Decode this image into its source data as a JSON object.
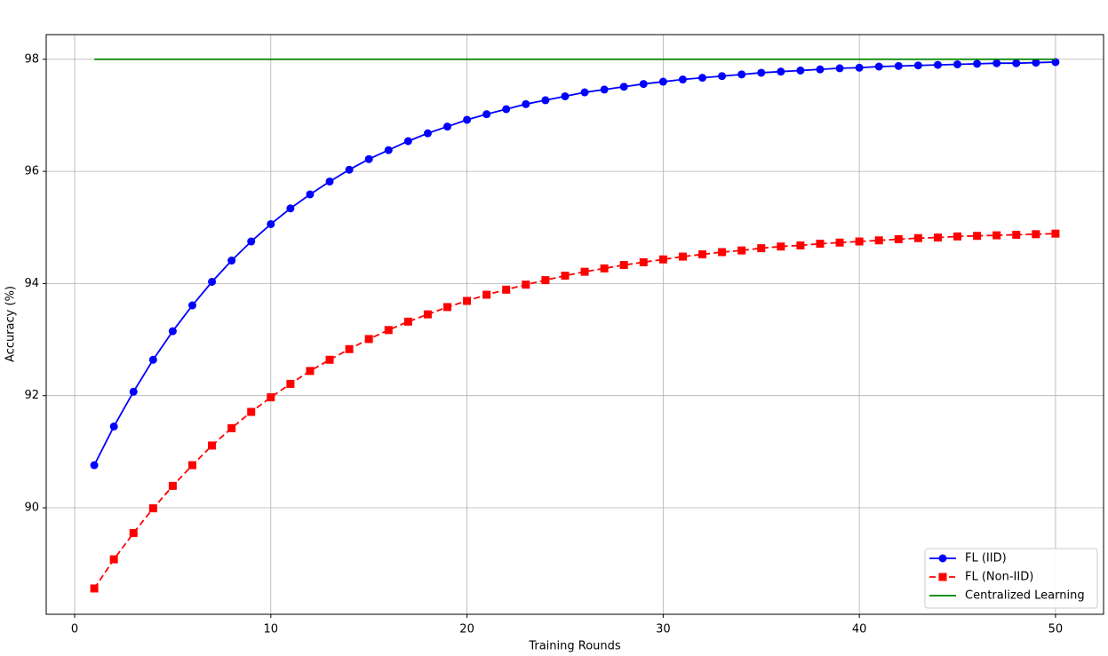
{
  "chart_data": {
    "type": "line",
    "xlabel": "Training Rounds",
    "ylabel": "Accuracy (%)",
    "x": [
      1,
      2,
      3,
      4,
      5,
      6,
      7,
      8,
      9,
      10,
      11,
      12,
      13,
      14,
      15,
      16,
      17,
      18,
      19,
      20,
      21,
      22,
      23,
      24,
      25,
      26,
      27,
      28,
      29,
      30,
      31,
      32,
      33,
      34,
      35,
      36,
      37,
      38,
      39,
      40,
      41,
      42,
      43,
      44,
      45,
      46,
      47,
      48,
      49,
      50
    ],
    "series": [
      {
        "name": "FL (IID)",
        "color": "#0000ff",
        "marker": "circle",
        "linestyle": "solid",
        "values": [
          90.76,
          91.45,
          92.07,
          92.64,
          93.15,
          93.61,
          94.03,
          94.41,
          94.75,
          95.06,
          95.34,
          95.59,
          95.82,
          96.03,
          96.22,
          96.38,
          96.54,
          96.68,
          96.8,
          96.92,
          97.02,
          97.11,
          97.2,
          97.27,
          97.34,
          97.41,
          97.46,
          97.51,
          97.56,
          97.6,
          97.64,
          97.67,
          97.7,
          97.73,
          97.76,
          97.78,
          97.8,
          97.82,
          97.84,
          97.85,
          97.87,
          97.88,
          97.89,
          97.9,
          97.91,
          97.92,
          97.93,
          97.93,
          97.94,
          97.95
        ]
      },
      {
        "name": "FL (Non-IID)",
        "color": "#ff0000",
        "marker": "square",
        "linestyle": "dashed",
        "values": [
          88.56,
          89.08,
          89.55,
          89.99,
          90.39,
          90.76,
          91.11,
          91.42,
          91.71,
          91.97,
          92.21,
          92.44,
          92.64,
          92.83,
          93.01,
          93.17,
          93.32,
          93.45,
          93.58,
          93.69,
          93.8,
          93.89,
          93.98,
          94.06,
          94.14,
          94.21,
          94.27,
          94.33,
          94.38,
          94.43,
          94.48,
          94.52,
          94.56,
          94.59,
          94.63,
          94.66,
          94.68,
          94.71,
          94.73,
          94.75,
          94.77,
          94.79,
          94.81,
          94.82,
          94.84,
          94.85,
          94.86,
          94.87,
          94.88,
          94.89
        ]
      },
      {
        "name": "Centralized Learning",
        "color": "#008000",
        "marker": "none",
        "linestyle": "solid",
        "values": [
          98,
          98,
          98,
          98,
          98,
          98,
          98,
          98,
          98,
          98,
          98,
          98,
          98,
          98,
          98,
          98,
          98,
          98,
          98,
          98,
          98,
          98,
          98,
          98,
          98,
          98,
          98,
          98,
          98,
          98,
          98,
          98,
          98,
          98,
          98,
          98,
          98,
          98,
          98,
          98,
          98,
          98,
          98,
          98,
          98,
          98,
          98,
          98,
          98,
          98
        ]
      }
    ],
    "xlim": [
      -1.45,
      52.45
    ],
    "xticks": [
      0,
      10,
      20,
      30,
      40,
      50
    ],
    "ylim": [
      88.1,
      98.44
    ],
    "yticks": [
      90,
      92,
      94,
      96,
      98
    ],
    "grid": true,
    "legend": "lower right"
  }
}
